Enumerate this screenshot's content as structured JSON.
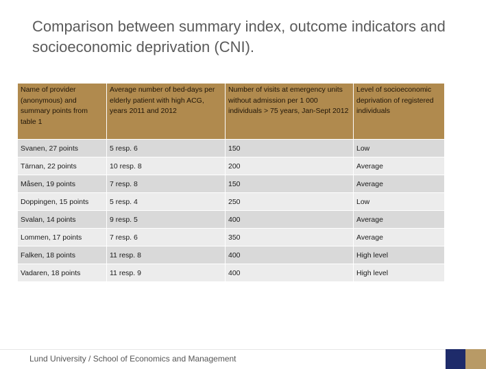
{
  "title": "Comparison between summary index, outcome indicators and socioeconomic deprivation (CNI).",
  "table": {
    "headers": [
      "Name of provider (anonymous) and summary points from table 1",
      "Average number of bed-days per elderly patient with high ACG, years 2011 and 2012",
      "Number of visits at emergency units without admission per 1 000 individuals > 75 years, Jan-Sept 2012",
      "Level of socioeconomic deprivation of registered individuals"
    ],
    "rows": [
      [
        "Svanen, 27 points",
        "5 resp. 6",
        "150",
        "Low"
      ],
      [
        "Tärnan, 22 points",
        "10 resp. 8",
        "200",
        "Average"
      ],
      [
        "Måsen, 19 points",
        "7 resp. 8",
        "150",
        "Average"
      ],
      [
        "Doppingen, 15 points",
        "5 resp. 4",
        "250",
        "Low"
      ],
      [
        "Svalan, 14 points",
        "9 resp. 5",
        "400",
        "Average"
      ],
      [
        "Lommen, 17 points",
        "7 resp. 6",
        "350",
        "Average"
      ],
      [
        "Falken, 18 points",
        "11 resp. 8",
        "400",
        "High level"
      ],
      [
        "Vadaren, 18 points",
        "11 resp. 9",
        "400",
        "High level"
      ]
    ]
  },
  "footer": "Lund University / School of Economics and Management",
  "colors": {
    "header_bg": "#b08a4e",
    "row_odd": "#d9d9d9",
    "row_even": "#ececec",
    "brand_blue": "#1e2b6a",
    "brand_gold": "#b89a66"
  }
}
